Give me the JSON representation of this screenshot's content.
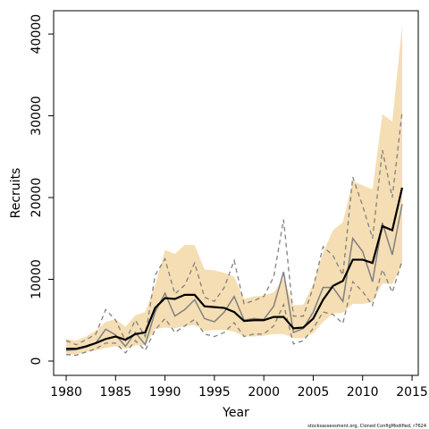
{
  "chart_data": {
    "type": "line",
    "xlabel": "Year",
    "ylabel": "Recruits",
    "footnote": "stocksassessment.org, Cloned ConfigModified, r7624",
    "x": [
      1980,
      1981,
      1982,
      1983,
      1984,
      1985,
      1986,
      1987,
      1988,
      1989,
      1990,
      1991,
      1992,
      1993,
      1994,
      1995,
      1996,
      1997,
      1998,
      1999,
      2000,
      2001,
      2002,
      2003,
      2004,
      2005,
      2006,
      2007,
      2008,
      2009,
      2010,
      2011,
      2012,
      2013,
      2014
    ],
    "band": {
      "color": "#f5deb3",
      "upper": [
        2700,
        2500,
        3000,
        3700,
        4800,
        5100,
        4200,
        5600,
        6000,
        9300,
        13600,
        13100,
        14200,
        14200,
        11200,
        11100,
        10800,
        10300,
        7600,
        7900,
        8000,
        8400,
        10100,
        6800,
        6900,
        9400,
        13300,
        16000,
        17000,
        22000,
        21500,
        21000,
        30200,
        29300,
        41000
      ],
      "lower": [
        800,
        800,
        1100,
        1300,
        1600,
        1800,
        1500,
        1900,
        2000,
        3900,
        4100,
        4000,
        4300,
        4400,
        3700,
        3800,
        3800,
        3600,
        3000,
        3000,
        3100,
        3300,
        3300,
        2800,
        2800,
        3400,
        4800,
        5800,
        5900,
        7000,
        7000,
        7200,
        9500,
        9400,
        11800
      ]
    },
    "series": [
      {
        "color": "#808080",
        "dash": true,
        "width": 1.3,
        "values": [
          2500,
          2000,
          2600,
          3300,
          6300,
          5000,
          2500,
          5000,
          3000,
          10500,
          12500,
          8200,
          9300,
          12000,
          7800,
          7300,
          9000,
          12300,
          7000,
          7400,
          7900,
          10300,
          17300,
          5500,
          5500,
          9000,
          14000,
          12900,
          10500,
          22500,
          19000,
          15000,
          25800,
          20000,
          30500
        ]
      },
      {
        "color": "#808080",
        "dash": true,
        "width": 1.3,
        "values": [
          800,
          700,
          1100,
          1500,
          2200,
          2200,
          1000,
          2500,
          1300,
          3800,
          5200,
          3500,
          4300,
          5100,
          3300,
          3000,
          3500,
          4700,
          3000,
          3300,
          3300,
          4300,
          6900,
          2100,
          2500,
          4000,
          6000,
          5700,
          4600,
          9700,
          8500,
          6800,
          11200,
          8400,
          12300
        ]
      },
      {
        "color": "#808080",
        "dash": false,
        "width": 1.5,
        "values": [
          1300,
          1400,
          1700,
          2200,
          3900,
          3200,
          1800,
          3500,
          2000,
          6000,
          8300,
          5500,
          6300,
          7500,
          5200,
          4800,
          6000,
          7900,
          5000,
          5200,
          5100,
          6700,
          10900,
          3500,
          4000,
          6000,
          9000,
          9000,
          7300,
          15000,
          13400,
          9700,
          16900,
          13000,
          19200
        ]
      },
      {
        "color": "#000000",
        "dash": false,
        "width": 2.2,
        "values": [
          1500,
          1500,
          1800,
          2200,
          2700,
          3000,
          2600,
          3300,
          3500,
          6500,
          7700,
          7600,
          8100,
          8100,
          6700,
          6600,
          6500,
          6000,
          4900,
          5000,
          5000,
          5400,
          5400,
          4000,
          4100,
          5200,
          7500,
          9200,
          9800,
          12400,
          12400,
          12000,
          16500,
          16000,
          21200
        ]
      }
    ],
    "xlim": [
      1978.73,
      2015.63
    ],
    "xticks": [
      1980,
      1985,
      1990,
      1995,
      2000,
      2005,
      2010,
      2015
    ],
    "ylim": [
      -1750,
      42850
    ],
    "yticks": [
      0,
      10000,
      20000,
      30000,
      40000
    ]
  }
}
